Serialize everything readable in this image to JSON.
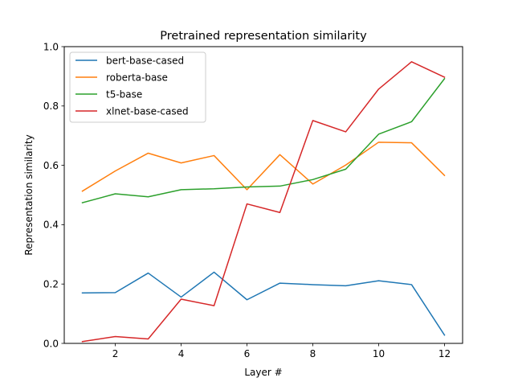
{
  "chart_data": {
    "type": "line",
    "title": "Pretrained representation similarity",
    "xlabel": "Layer #",
    "ylabel": "Representation similarity",
    "xlim": [
      0.45,
      12.55
    ],
    "ylim": [
      0,
      1.0
    ],
    "x_ticks": [
      2,
      4,
      6,
      8,
      10,
      12
    ],
    "x_tick_labels": [
      "2",
      "4",
      "6",
      "8",
      "10",
      "12"
    ],
    "y_ticks": [
      0.0,
      0.2,
      0.4,
      0.6,
      0.8,
      1.0
    ],
    "y_tick_labels": [
      "0.0",
      "0.2",
      "0.4",
      "0.6",
      "0.8",
      "1.0"
    ],
    "grid": false,
    "legend_position": "top-left",
    "x": [
      1,
      2,
      3,
      4,
      5,
      6,
      7,
      8,
      9,
      10,
      11,
      12
    ],
    "series": [
      {
        "name": "bert-base-cased",
        "color": "#1f77b4",
        "values": [
          0.17,
          0.171,
          0.237,
          0.156,
          0.24,
          0.147,
          0.203,
          0.198,
          0.194,
          0.211,
          0.198,
          0.028
        ]
      },
      {
        "name": "roberta-base",
        "color": "#ff7f0e",
        "values": [
          0.513,
          0.581,
          0.641,
          0.608,
          0.633,
          0.518,
          0.636,
          0.537,
          0.601,
          0.678,
          0.676,
          0.566
        ]
      },
      {
        "name": "t5-base",
        "color": "#2ca02c",
        "values": [
          0.474,
          0.504,
          0.494,
          0.518,
          0.521,
          0.527,
          0.53,
          0.552,
          0.587,
          0.705,
          0.747,
          0.892
        ]
      },
      {
        "name": "xlnet-base-cased",
        "color": "#d62728",
        "values": [
          0.006,
          0.023,
          0.015,
          0.149,
          0.127,
          0.47,
          0.441,
          0.751,
          0.713,
          0.857,
          0.949,
          0.897
        ]
      }
    ]
  }
}
